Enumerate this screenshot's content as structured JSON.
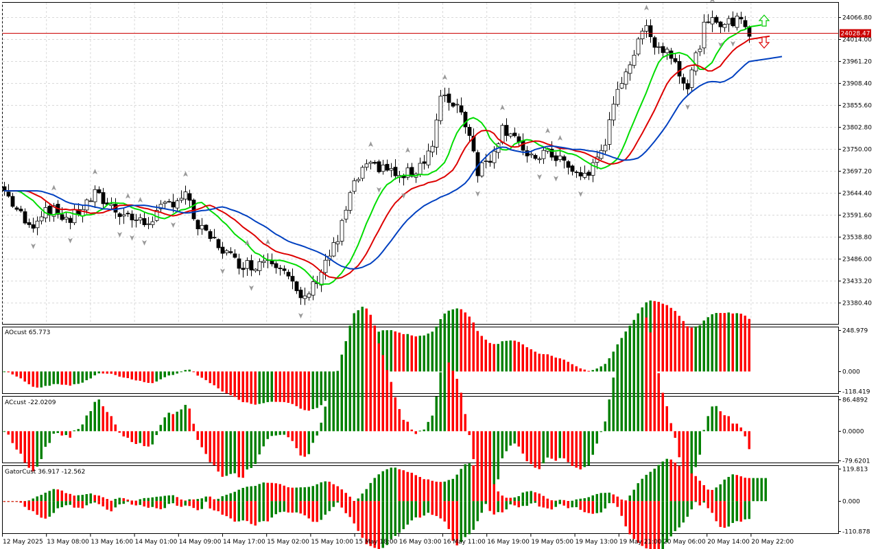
{
  "chart_data": [
    {
      "type": "candlestick",
      "panel": "main",
      "title": "",
      "current_price": "24028.47",
      "y_ticks": [
        "24066.80",
        "24014.00",
        "23961.20",
        "23908.40",
        "23855.60",
        "23802.80",
        "23750.00",
        "23697.20",
        "23644.40",
        "23591.60",
        "23538.80",
        "23486.00",
        "23433.20",
        "23380.40"
      ],
      "ylim": [
        23330,
        24110
      ],
      "series": [
        {
          "name": "",
          "color": "#00dd00",
          "type": "line"
        },
        {
          "name": "",
          "color": "#dd0000",
          "type": "line"
        },
        {
          "name": "",
          "color": "#0040c0",
          "type": "line"
        }
      ],
      "colors": {
        "up_candle": "#ffffff",
        "down_candle": "#000000",
        "fractal": "#999999",
        "price_line": "#cc0000",
        "signal_up": "#00cc00",
        "signal_down": "#dd0000"
      }
    },
    {
      "type": "bar",
      "panel": "ao",
      "label": "AOcust 65.773",
      "y_ticks": [
        "248.979",
        "0.000",
        "-118.419"
      ],
      "ylim": [
        -118.419,
        248.979
      ],
      "colors": {
        "up": "#008000",
        "down": "#ff0000"
      }
    },
    {
      "type": "bar",
      "panel": "ac",
      "label": "ACcust -22.0209",
      "y_ticks": [
        "86.4892",
        "0.0000",
        "-79.6201"
      ],
      "ylim": [
        -79.6201,
        86.4892
      ],
      "colors": {
        "up": "#008000",
        "down": "#ff0000"
      }
    },
    {
      "type": "bar",
      "panel": "gator",
      "label": "GatorCust 36.917 -12.562",
      "y_ticks": [
        "119.813",
        "0.000",
        "-110.878"
      ],
      "ylim": [
        -110.878,
        119.813
      ],
      "colors": {
        "up": "#008000",
        "down": "#ff0000"
      }
    }
  ],
  "x_axis": {
    "ticks": [
      "12 May 2025",
      "13 May 08:00",
      "13 May 16:00",
      "14 May 01:00",
      "14 May 09:00",
      "14 May 17:00",
      "15 May 02:00",
      "15 May 10:00",
      "15 May 18:00",
      "16 May 03:00",
      "16 May 11:00",
      "16 May 19:00",
      "19 May 05:00",
      "19 May 13:00",
      "19 May 21:00",
      "20 May 06:00",
      "20 May 14:00",
      "20 May 22:00"
    ]
  }
}
